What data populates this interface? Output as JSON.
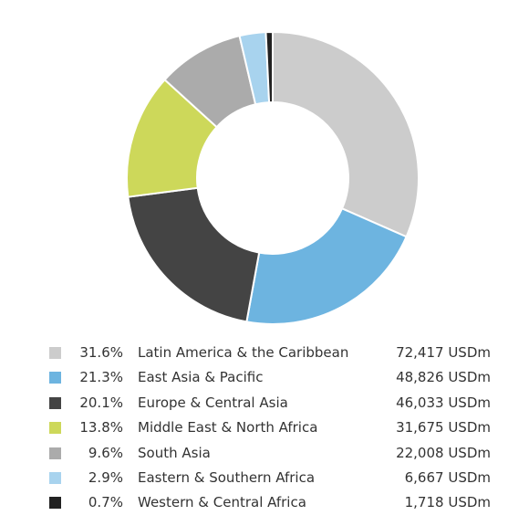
{
  "chart_data": {
    "type": "pie",
    "donut": true,
    "title": "",
    "unit": "USDm",
    "slices": [
      {
        "label": "Latin America & the Caribbean",
        "percent": "31.6%",
        "value": 72417,
        "value_text": "72,417 USDm",
        "color": "#cccccc"
      },
      {
        "label": "East Asia & Pacific",
        "percent": "21.3%",
        "value": 48826,
        "value_text": "48,826 USDm",
        "color": "#6db4e0"
      },
      {
        "label": "Europe & Central Asia",
        "percent": "20.1%",
        "value": 46033,
        "value_text": "46,033 USDm",
        "color": "#444444"
      },
      {
        "label": "Middle East & North Africa",
        "percent": "13.8%",
        "value": 31675,
        "value_text": "31,675 USDm",
        "color": "#cdd85a"
      },
      {
        "label": "South Asia",
        "percent": "9.6%",
        "value": 22008,
        "value_text": "22,008 USDm",
        "color": "#ababab"
      },
      {
        "label": "Eastern & Southern Africa",
        "percent": "2.9%",
        "value": 6667,
        "value_text": "6,667 USDm",
        "color": "#a8d3ee"
      },
      {
        "label": "Western & Central Africa",
        "percent": "0.7%",
        "value": 1718,
        "value_text": "1,718 USDm",
        "color": "#222222"
      }
    ],
    "legend_placement": "bottom",
    "start_angle": "top",
    "direction": "clockwise"
  }
}
